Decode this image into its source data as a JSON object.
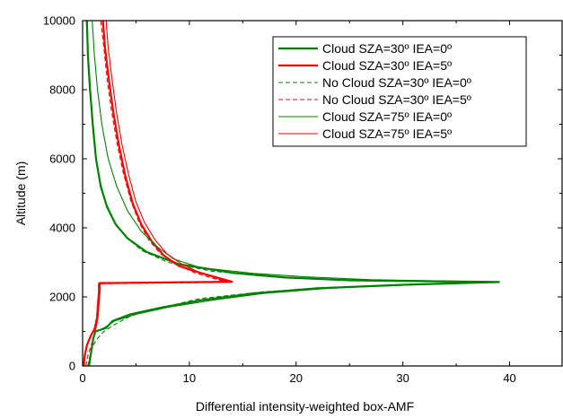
{
  "chart_data": {
    "type": "line",
    "xlabel": "Differential intensity-weighted box-AMF",
    "ylabel": "Altitude (m)",
    "xlim": [
      0,
      45
    ],
    "ylim": [
      0,
      10000
    ],
    "x_ticks": [
      0,
      10,
      20,
      30,
      40
    ],
    "x_tick_labels": [
      "0",
      "10",
      "20",
      "30",
      "40"
    ],
    "y_ticks": [
      0,
      2000,
      4000,
      6000,
      8000,
      10000
    ],
    "y_tick_labels": [
      "0",
      "2000",
      "4000",
      "6000",
      "8000",
      "10000"
    ],
    "grid": false,
    "legend_position": "top-right",
    "series": [
      {
        "name": "Cloud SZA=30º IEA=0º",
        "color": "#008000",
        "style": "solid",
        "width": "thick",
        "points": [
          [
            0.6,
            0
          ],
          [
            0.7,
            200
          ],
          [
            0.8,
            400
          ],
          [
            0.9,
            600
          ],
          [
            1.0,
            800
          ],
          [
            1.2,
            1000
          ],
          [
            2.2,
            1100
          ],
          [
            2.8,
            1300
          ],
          [
            4.5,
            1500
          ],
          [
            7.5,
            1700
          ],
          [
            11,
            1900
          ],
          [
            16,
            2100
          ],
          [
            22,
            2250
          ],
          [
            30,
            2350
          ],
          [
            39,
            2430
          ],
          [
            25,
            2480
          ],
          [
            19,
            2560
          ],
          [
            14,
            2700
          ],
          [
            9,
            2950
          ],
          [
            6,
            3300
          ],
          [
            4.2,
            3700
          ],
          [
            3.1,
            4100
          ],
          [
            2.3,
            4600
          ],
          [
            1.7,
            5200
          ],
          [
            1.25,
            6000
          ],
          [
            0.95,
            7000
          ],
          [
            0.7,
            8000
          ],
          [
            0.5,
            9000
          ],
          [
            0.4,
            10000
          ]
        ]
      },
      {
        "name": "Cloud SZA=30º IEA=5º",
        "color": "#ff0000",
        "style": "solid",
        "width": "thick",
        "points": [
          [
            0.1,
            0
          ],
          [
            0.2,
            300
          ],
          [
            0.4,
            600
          ],
          [
            0.8,
            900
          ],
          [
            1.2,
            1100
          ],
          [
            1.4,
            1400
          ],
          [
            1.5,
            1800
          ],
          [
            1.6,
            2200
          ],
          [
            1.6,
            2400
          ],
          [
            14,
            2440
          ],
          [
            11,
            2700
          ],
          [
            9,
            2900
          ],
          [
            7.6,
            3200
          ],
          [
            6.5,
            3600
          ],
          [
            5.5,
            4100
          ],
          [
            4.7,
            4700
          ],
          [
            4.0,
            5500
          ],
          [
            3.4,
            6400
          ],
          [
            2.9,
            7300
          ],
          [
            2.5,
            8200
          ],
          [
            2.1,
            9200
          ],
          [
            1.9,
            10000
          ]
        ]
      },
      {
        "name": "No Cloud SZA=30º IEA=0º",
        "color": "#008000",
        "style": "dashed",
        "width": "thin",
        "points": [
          [
            0.5,
            0
          ],
          [
            0.6,
            200
          ],
          [
            0.8,
            400
          ],
          [
            1.0,
            600
          ],
          [
            1.4,
            800
          ],
          [
            2.0,
            1000
          ],
          [
            3.0,
            1200
          ],
          [
            4.5,
            1450
          ],
          [
            7.5,
            1700
          ],
          [
            11,
            1950
          ],
          [
            17,
            2150
          ],
          [
            26,
            2300
          ],
          [
            38,
            2420
          ],
          [
            39,
            2440
          ],
          [
            24,
            2500
          ],
          [
            17,
            2600
          ],
          [
            12,
            2750
          ],
          [
            8,
            3000
          ],
          [
            5.5,
            3350
          ],
          [
            4,
            3750
          ],
          [
            2.9,
            4200
          ],
          [
            2.1,
            4800
          ],
          [
            1.5,
            5500
          ],
          [
            1.1,
            6400
          ],
          [
            0.85,
            7300
          ],
          [
            0.6,
            8300
          ],
          [
            0.45,
            9300
          ],
          [
            0.35,
            10000
          ]
        ]
      },
      {
        "name": "No Cloud SZA=30º IEA=5º",
        "color": "#ff0000",
        "style": "dashed",
        "width": "thin",
        "points": [
          [
            0.3,
            0
          ],
          [
            0.5,
            300
          ],
          [
            0.8,
            600
          ],
          [
            1.1,
            900
          ],
          [
            1.3,
            1200
          ],
          [
            1.4,
            1600
          ],
          [
            1.5,
            2000
          ],
          [
            1.5,
            2380
          ],
          [
            13.5,
            2420
          ],
          [
            10.5,
            2700
          ],
          [
            8.7,
            2950
          ],
          [
            7.3,
            3250
          ],
          [
            6.2,
            3650
          ],
          [
            5.3,
            4150
          ],
          [
            4.5,
            4800
          ],
          [
            3.8,
            5600
          ],
          [
            3.2,
            6500
          ],
          [
            2.7,
            7400
          ],
          [
            2.3,
            8300
          ],
          [
            2.0,
            9200
          ],
          [
            1.7,
            10000
          ]
        ]
      },
      {
        "name": "Cloud SZA=75º IEA=0º",
        "color": "#008000",
        "style": "solid",
        "width": "thin",
        "points": [
          [
            0.6,
            0
          ],
          [
            0.7,
            200
          ],
          [
            0.8,
            400
          ],
          [
            0.9,
            600
          ],
          [
            1.0,
            800
          ],
          [
            1.2,
            1000
          ],
          [
            2.0,
            1100
          ],
          [
            3.0,
            1300
          ],
          [
            5.0,
            1500
          ],
          [
            8,
            1700
          ],
          [
            12,
            1900
          ],
          [
            17,
            2100
          ],
          [
            23,
            2250
          ],
          [
            31,
            2350
          ],
          [
            39,
            2430
          ],
          [
            27,
            2500
          ],
          [
            21,
            2580
          ],
          [
            16,
            2680
          ],
          [
            11,
            2850
          ],
          [
            8.5,
            3100
          ],
          [
            7,
            3450
          ],
          [
            5.5,
            3900
          ],
          [
            4.2,
            4500
          ],
          [
            3.2,
            5200
          ],
          [
            2.4,
            6000
          ],
          [
            1.8,
            7000
          ],
          [
            1.4,
            8000
          ],
          [
            1.1,
            9000
          ],
          [
            0.9,
            10000
          ]
        ]
      },
      {
        "name": "Cloud SZA=75º IEA=5º",
        "color": "#ff0000",
        "style": "solid",
        "width": "thin",
        "points": [
          [
            0.1,
            0
          ],
          [
            0.2,
            300
          ],
          [
            0.4,
            600
          ],
          [
            0.8,
            900
          ],
          [
            1.1,
            1100
          ],
          [
            1.3,
            1400
          ],
          [
            1.4,
            1800
          ],
          [
            1.5,
            2200
          ],
          [
            1.5,
            2400
          ],
          [
            13.5,
            2440
          ],
          [
            11,
            2700
          ],
          [
            9.3,
            2950
          ],
          [
            7.9,
            3250
          ],
          [
            6.8,
            3650
          ],
          [
            5.8,
            4150
          ],
          [
            5.0,
            4750
          ],
          [
            4.3,
            5550
          ],
          [
            3.7,
            6400
          ],
          [
            3.2,
            7300
          ],
          [
            2.8,
            8200
          ],
          [
            2.4,
            9200
          ],
          [
            2.2,
            10000
          ]
        ]
      }
    ]
  }
}
